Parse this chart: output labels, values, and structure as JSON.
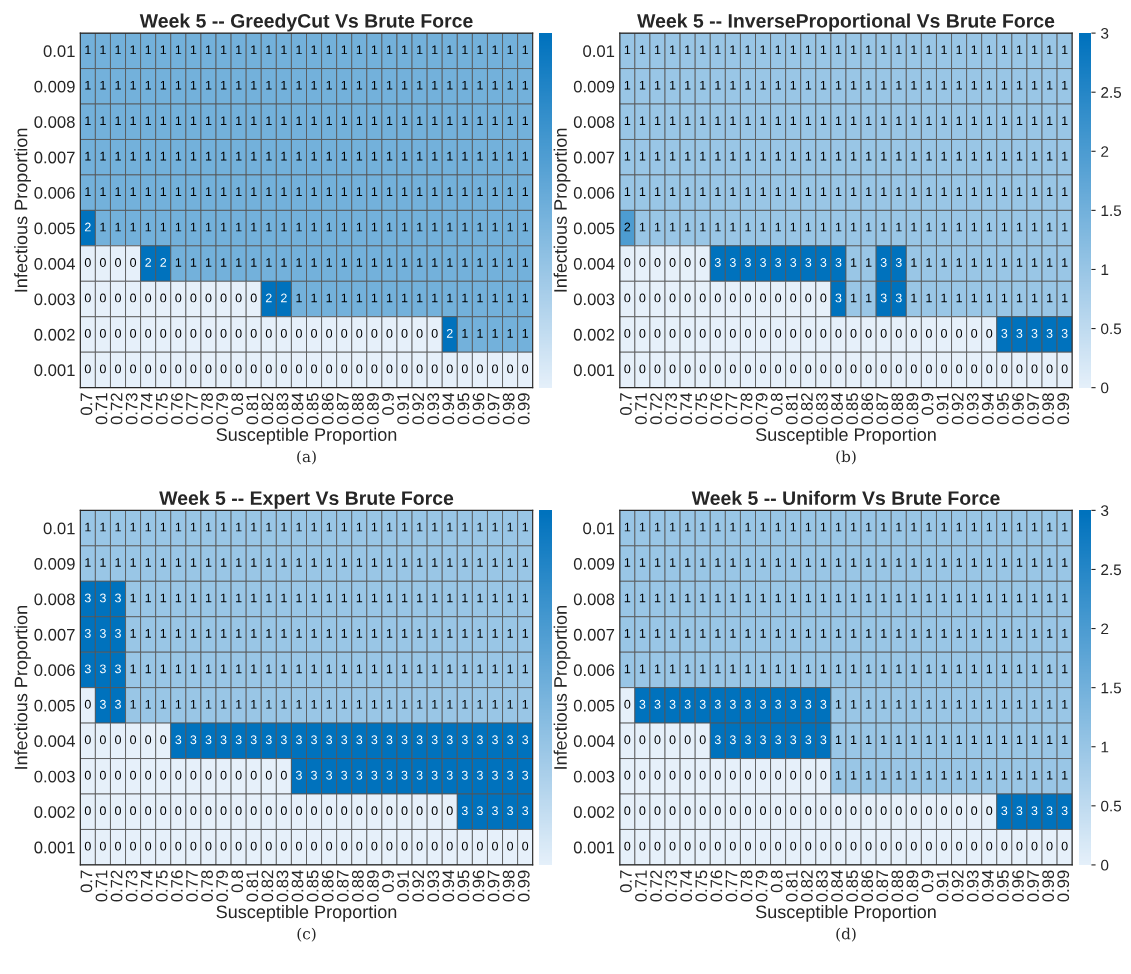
{
  "chart_data": [
    {
      "type": "heatmap",
      "title": "Week 5 -- GreedyCut Vs Brute Force",
      "xlabel": "Susceptible Proportion",
      "ylabel": "Infectious Proportion",
      "annotations": [
        "(a)"
      ],
      "data_labels": true,
      "categories": [
        "0.7",
        "0.71",
        "0.72",
        "0.73",
        "0.74",
        "0.75",
        "0.76",
        "0.77",
        "0.78",
        "0.79",
        "0.8",
        "0.81",
        "0.82",
        "0.83",
        "0.84",
        "0.85",
        "0.86",
        "0.87",
        "0.88",
        "0.89",
        "0.9",
        "0.91",
        "0.92",
        "0.93",
        "0.94",
        "0.95",
        "0.96",
        "0.97",
        "0.98",
        "0.99"
      ],
      "y_categories": [
        "0.01",
        "0.009",
        "0.008",
        "0.007",
        "0.006",
        "0.005",
        "0.004",
        "0.003",
        "0.002",
        "0.001"
      ],
      "cells": [
        [
          1,
          1,
          1,
          1,
          1,
          1,
          1,
          1,
          1,
          1,
          1,
          1,
          1,
          1,
          1,
          1,
          1,
          1,
          1,
          1,
          1,
          1,
          1,
          1,
          1,
          1,
          1,
          1,
          1,
          1
        ],
        [
          1,
          1,
          1,
          1,
          1,
          1,
          1,
          1,
          1,
          1,
          1,
          1,
          1,
          1,
          1,
          1,
          1,
          1,
          1,
          1,
          1,
          1,
          1,
          1,
          1,
          1,
          1,
          1,
          1,
          1
        ],
        [
          1,
          1,
          1,
          1,
          1,
          1,
          1,
          1,
          1,
          1,
          1,
          1,
          1,
          1,
          1,
          1,
          1,
          1,
          1,
          1,
          1,
          1,
          1,
          1,
          1,
          1,
          1,
          1,
          1,
          1
        ],
        [
          1,
          1,
          1,
          1,
          1,
          1,
          1,
          1,
          1,
          1,
          1,
          1,
          1,
          1,
          1,
          1,
          1,
          1,
          1,
          1,
          1,
          1,
          1,
          1,
          1,
          1,
          1,
          1,
          1,
          1
        ],
        [
          1,
          1,
          1,
          1,
          1,
          1,
          1,
          1,
          1,
          1,
          1,
          1,
          1,
          1,
          1,
          1,
          1,
          1,
          1,
          1,
          1,
          1,
          1,
          1,
          1,
          1,
          1,
          1,
          1,
          1
        ],
        [
          2,
          1,
          1,
          1,
          1,
          1,
          1,
          1,
          1,
          1,
          1,
          1,
          1,
          1,
          1,
          1,
          1,
          1,
          1,
          1,
          1,
          1,
          1,
          1,
          1,
          1,
          1,
          1,
          1,
          1
        ],
        [
          0,
          0,
          0,
          0,
          2,
          2,
          1,
          1,
          1,
          1,
          1,
          1,
          1,
          1,
          1,
          1,
          1,
          1,
          1,
          1,
          1,
          1,
          1,
          1,
          1,
          1,
          1,
          1,
          1,
          1
        ],
        [
          0,
          0,
          0,
          0,
          0,
          0,
          0,
          0,
          0,
          0,
          0,
          0,
          2,
          2,
          1,
          1,
          1,
          1,
          1,
          1,
          1,
          1,
          1,
          1,
          1,
          1,
          1,
          1,
          1,
          1
        ],
        [
          0,
          0,
          0,
          0,
          0,
          0,
          0,
          0,
          0,
          0,
          0,
          0,
          0,
          0,
          0,
          0,
          0,
          0,
          0,
          0,
          0,
          0,
          0,
          0,
          2,
          1,
          1,
          1,
          1,
          1
        ],
        [
          0,
          0,
          0,
          0,
          0,
          0,
          0,
          0,
          0,
          0,
          0,
          0,
          0,
          0,
          0,
          0,
          0,
          0,
          0,
          0,
          0,
          0,
          0,
          0,
          0,
          0,
          0,
          0,
          0,
          0
        ]
      ]
    },
    {
      "type": "heatmap",
      "title": "Week 5 -- InverseProportional Vs Brute Force",
      "xlabel": "Susceptible Proportion",
      "ylabel": "Infectious Proportion",
      "annotations": [
        "(b)"
      ],
      "data_labels": true,
      "clim": [
        0,
        3
      ],
      "cticks": [
        0,
        0.5,
        1,
        1.5,
        2,
        2.5,
        3
      ],
      "categories": [
        "0.7",
        "0.71",
        "0.72",
        "0.73",
        "0.74",
        "0.75",
        "0.76",
        "0.77",
        "0.78",
        "0.79",
        "0.8",
        "0.81",
        "0.82",
        "0.83",
        "0.84",
        "0.85",
        "0.86",
        "0.87",
        "0.88",
        "0.89",
        "0.9",
        "0.91",
        "0.92",
        "0.93",
        "0.94",
        "0.95",
        "0.96",
        "0.97",
        "0.98",
        "0.99"
      ],
      "y_categories": [
        "0.01",
        "0.009",
        "0.008",
        "0.007",
        "0.006",
        "0.005",
        "0.004",
        "0.003",
        "0.002",
        "0.001"
      ],
      "cells": [
        [
          1,
          1,
          1,
          1,
          1,
          1,
          1,
          1,
          1,
          1,
          1,
          1,
          1,
          1,
          1,
          1,
          1,
          1,
          1,
          1,
          1,
          1,
          1,
          1,
          1,
          1,
          1,
          1,
          1,
          1
        ],
        [
          1,
          1,
          1,
          1,
          1,
          1,
          1,
          1,
          1,
          1,
          1,
          1,
          1,
          1,
          1,
          1,
          1,
          1,
          1,
          1,
          1,
          1,
          1,
          1,
          1,
          1,
          1,
          1,
          1,
          1
        ],
        [
          1,
          1,
          1,
          1,
          1,
          1,
          1,
          1,
          1,
          1,
          1,
          1,
          1,
          1,
          1,
          1,
          1,
          1,
          1,
          1,
          1,
          1,
          1,
          1,
          1,
          1,
          1,
          1,
          1,
          1
        ],
        [
          1,
          1,
          1,
          1,
          1,
          1,
          1,
          1,
          1,
          1,
          1,
          1,
          1,
          1,
          1,
          1,
          1,
          1,
          1,
          1,
          1,
          1,
          1,
          1,
          1,
          1,
          1,
          1,
          1,
          1
        ],
        [
          1,
          1,
          1,
          1,
          1,
          1,
          1,
          1,
          1,
          1,
          1,
          1,
          1,
          1,
          1,
          1,
          1,
          1,
          1,
          1,
          1,
          1,
          1,
          1,
          1,
          1,
          1,
          1,
          1,
          1
        ],
        [
          2,
          1,
          1,
          1,
          1,
          1,
          1,
          1,
          1,
          1,
          1,
          1,
          1,
          1,
          1,
          1,
          1,
          1,
          1,
          1,
          1,
          1,
          1,
          1,
          1,
          1,
          1,
          1,
          1,
          1
        ],
        [
          0,
          0,
          0,
          0,
          0,
          0,
          3,
          3,
          3,
          3,
          3,
          3,
          3,
          3,
          3,
          1,
          1,
          3,
          3,
          1,
          1,
          1,
          1,
          1,
          1,
          1,
          1,
          1,
          1,
          1
        ],
        [
          0,
          0,
          0,
          0,
          0,
          0,
          0,
          0,
          0,
          0,
          0,
          0,
          0,
          0,
          3,
          1,
          1,
          3,
          3,
          1,
          1,
          1,
          1,
          1,
          1,
          1,
          1,
          1,
          1,
          1
        ],
        [
          0,
          0,
          0,
          0,
          0,
          0,
          0,
          0,
          0,
          0,
          0,
          0,
          0,
          0,
          0,
          0,
          0,
          0,
          0,
          0,
          0,
          0,
          0,
          0,
          0,
          3,
          3,
          3,
          3,
          3
        ],
        [
          0,
          0,
          0,
          0,
          0,
          0,
          0,
          0,
          0,
          0,
          0,
          0,
          0,
          0,
          0,
          0,
          0,
          0,
          0,
          0,
          0,
          0,
          0,
          0,
          0,
          0,
          0,
          0,
          0,
          0
        ]
      ]
    },
    {
      "type": "heatmap",
      "title": "Week 5 -- Expert Vs Brute Force",
      "xlabel": "Susceptible Proportion",
      "ylabel": "Infectious Proportion",
      "annotations": [
        "(c)"
      ],
      "data_labels": true,
      "categories": [
        "0.7",
        "0.71",
        "0.72",
        "0.73",
        "0.74",
        "0.75",
        "0.76",
        "0.77",
        "0.78",
        "0.79",
        "0.8",
        "0.81",
        "0.82",
        "0.83",
        "0.84",
        "0.85",
        "0.86",
        "0.87",
        "0.88",
        "0.89",
        "0.9",
        "0.91",
        "0.92",
        "0.93",
        "0.94",
        "0.95",
        "0.96",
        "0.97",
        "0.98",
        "0.99"
      ],
      "y_categories": [
        "0.01",
        "0.009",
        "0.008",
        "0.007",
        "0.006",
        "0.005",
        "0.004",
        "0.003",
        "0.002",
        "0.001"
      ],
      "cells": [
        [
          1,
          1,
          1,
          1,
          1,
          1,
          1,
          1,
          1,
          1,
          1,
          1,
          1,
          1,
          1,
          1,
          1,
          1,
          1,
          1,
          1,
          1,
          1,
          1,
          1,
          1,
          1,
          1,
          1,
          1
        ],
        [
          1,
          1,
          1,
          1,
          1,
          1,
          1,
          1,
          1,
          1,
          1,
          1,
          1,
          1,
          1,
          1,
          1,
          1,
          1,
          1,
          1,
          1,
          1,
          1,
          1,
          1,
          1,
          1,
          1,
          1
        ],
        [
          3,
          3,
          3,
          1,
          1,
          1,
          1,
          1,
          1,
          1,
          1,
          1,
          1,
          1,
          1,
          1,
          1,
          1,
          1,
          1,
          1,
          1,
          1,
          1,
          1,
          1,
          1,
          1,
          1,
          1
        ],
        [
          3,
          3,
          3,
          1,
          1,
          1,
          1,
          1,
          1,
          1,
          1,
          1,
          1,
          1,
          1,
          1,
          1,
          1,
          1,
          1,
          1,
          1,
          1,
          1,
          1,
          1,
          1,
          1,
          1,
          1
        ],
        [
          3,
          3,
          3,
          1,
          1,
          1,
          1,
          1,
          1,
          1,
          1,
          1,
          1,
          1,
          1,
          1,
          1,
          1,
          1,
          1,
          1,
          1,
          1,
          1,
          1,
          1,
          1,
          1,
          1,
          1
        ],
        [
          0,
          3,
          3,
          1,
          1,
          1,
          1,
          1,
          1,
          1,
          1,
          1,
          1,
          1,
          1,
          1,
          1,
          1,
          1,
          1,
          1,
          1,
          1,
          1,
          1,
          1,
          1,
          1,
          1,
          1
        ],
        [
          0,
          0,
          0,
          0,
          0,
          0,
          3,
          3,
          3,
          3,
          3,
          3,
          3,
          3,
          3,
          3,
          3,
          3,
          3,
          3,
          3,
          3,
          3,
          3,
          3,
          3,
          3,
          3,
          3,
          3
        ],
        [
          0,
          0,
          0,
          0,
          0,
          0,
          0,
          0,
          0,
          0,
          0,
          0,
          0,
          0,
          3,
          3,
          3,
          3,
          3,
          3,
          3,
          3,
          3,
          3,
          3,
          3,
          3,
          3,
          3,
          3
        ],
        [
          0,
          0,
          0,
          0,
          0,
          0,
          0,
          0,
          0,
          0,
          0,
          0,
          0,
          0,
          0,
          0,
          0,
          0,
          0,
          0,
          0,
          0,
          0,
          0,
          0,
          3,
          3,
          3,
          3,
          3
        ],
        [
          0,
          0,
          0,
          0,
          0,
          0,
          0,
          0,
          0,
          0,
          0,
          0,
          0,
          0,
          0,
          0,
          0,
          0,
          0,
          0,
          0,
          0,
          0,
          0,
          0,
          0,
          0,
          0,
          0,
          0
        ]
      ]
    },
    {
      "type": "heatmap",
      "title": "Week 5 -- Uniform Vs Brute Force",
      "xlabel": "Susceptible Proportion",
      "ylabel": "Infectious Proportion",
      "annotations": [
        "(d)"
      ],
      "data_labels": true,
      "clim": [
        0,
        3
      ],
      "cticks": [
        0,
        0.5,
        1,
        1.5,
        2,
        2.5,
        3
      ],
      "categories": [
        "0.7",
        "0.71",
        "0.72",
        "0.73",
        "0.74",
        "0.75",
        "0.76",
        "0.77",
        "0.78",
        "0.79",
        "0.8",
        "0.81",
        "0.82",
        "0.83",
        "0.84",
        "0.85",
        "0.86",
        "0.87",
        "0.88",
        "0.89",
        "0.9",
        "0.91",
        "0.92",
        "0.93",
        "0.94",
        "0.95",
        "0.96",
        "0.97",
        "0.98",
        "0.99"
      ],
      "y_categories": [
        "0.01",
        "0.009",
        "0.008",
        "0.007",
        "0.006",
        "0.005",
        "0.004",
        "0.003",
        "0.002",
        "0.001"
      ],
      "cells": [
        [
          1,
          1,
          1,
          1,
          1,
          1,
          1,
          1,
          1,
          1,
          1,
          1,
          1,
          1,
          1,
          1,
          1,
          1,
          1,
          1,
          1,
          1,
          1,
          1,
          1,
          1,
          1,
          1,
          1,
          1
        ],
        [
          1,
          1,
          1,
          1,
          1,
          1,
          1,
          1,
          1,
          1,
          1,
          1,
          1,
          1,
          1,
          1,
          1,
          1,
          1,
          1,
          1,
          1,
          1,
          1,
          1,
          1,
          1,
          1,
          1,
          1
        ],
        [
          1,
          1,
          1,
          1,
          1,
          1,
          1,
          1,
          1,
          1,
          1,
          1,
          1,
          1,
          1,
          1,
          1,
          1,
          1,
          1,
          1,
          1,
          1,
          1,
          1,
          1,
          1,
          1,
          1,
          1
        ],
        [
          1,
          1,
          1,
          1,
          1,
          1,
          1,
          1,
          1,
          1,
          1,
          1,
          1,
          1,
          1,
          1,
          1,
          1,
          1,
          1,
          1,
          1,
          1,
          1,
          1,
          1,
          1,
          1,
          1,
          1
        ],
        [
          1,
          1,
          1,
          1,
          1,
          1,
          1,
          1,
          1,
          1,
          1,
          1,
          1,
          1,
          1,
          1,
          1,
          1,
          1,
          1,
          1,
          1,
          1,
          1,
          1,
          1,
          1,
          1,
          1,
          1
        ],
        [
          0,
          3,
          3,
          3,
          3,
          3,
          3,
          3,
          3,
          3,
          3,
          3,
          3,
          3,
          1,
          1,
          1,
          1,
          1,
          1,
          1,
          1,
          1,
          1,
          1,
          1,
          1,
          1,
          1,
          1
        ],
        [
          0,
          0,
          0,
          0,
          0,
          0,
          3,
          3,
          3,
          3,
          3,
          3,
          3,
          3,
          1,
          1,
          1,
          1,
          1,
          1,
          1,
          1,
          1,
          1,
          1,
          1,
          1,
          1,
          1,
          1
        ],
        [
          0,
          0,
          0,
          0,
          0,
          0,
          0,
          0,
          0,
          0,
          0,
          0,
          0,
          0,
          1,
          1,
          1,
          1,
          1,
          1,
          1,
          1,
          1,
          1,
          1,
          1,
          1,
          1,
          1,
          1
        ],
        [
          0,
          0,
          0,
          0,
          0,
          0,
          0,
          0,
          0,
          0,
          0,
          0,
          0,
          0,
          0,
          0,
          0,
          0,
          0,
          0,
          0,
          0,
          0,
          0,
          0,
          3,
          3,
          3,
          3,
          3
        ],
        [
          0,
          0,
          0,
          0,
          0,
          0,
          0,
          0,
          0,
          0,
          0,
          0,
          0,
          0,
          0,
          0,
          0,
          0,
          0,
          0,
          0,
          0,
          0,
          0,
          0,
          0,
          0,
          0,
          0,
          0
        ]
      ]
    }
  ]
}
